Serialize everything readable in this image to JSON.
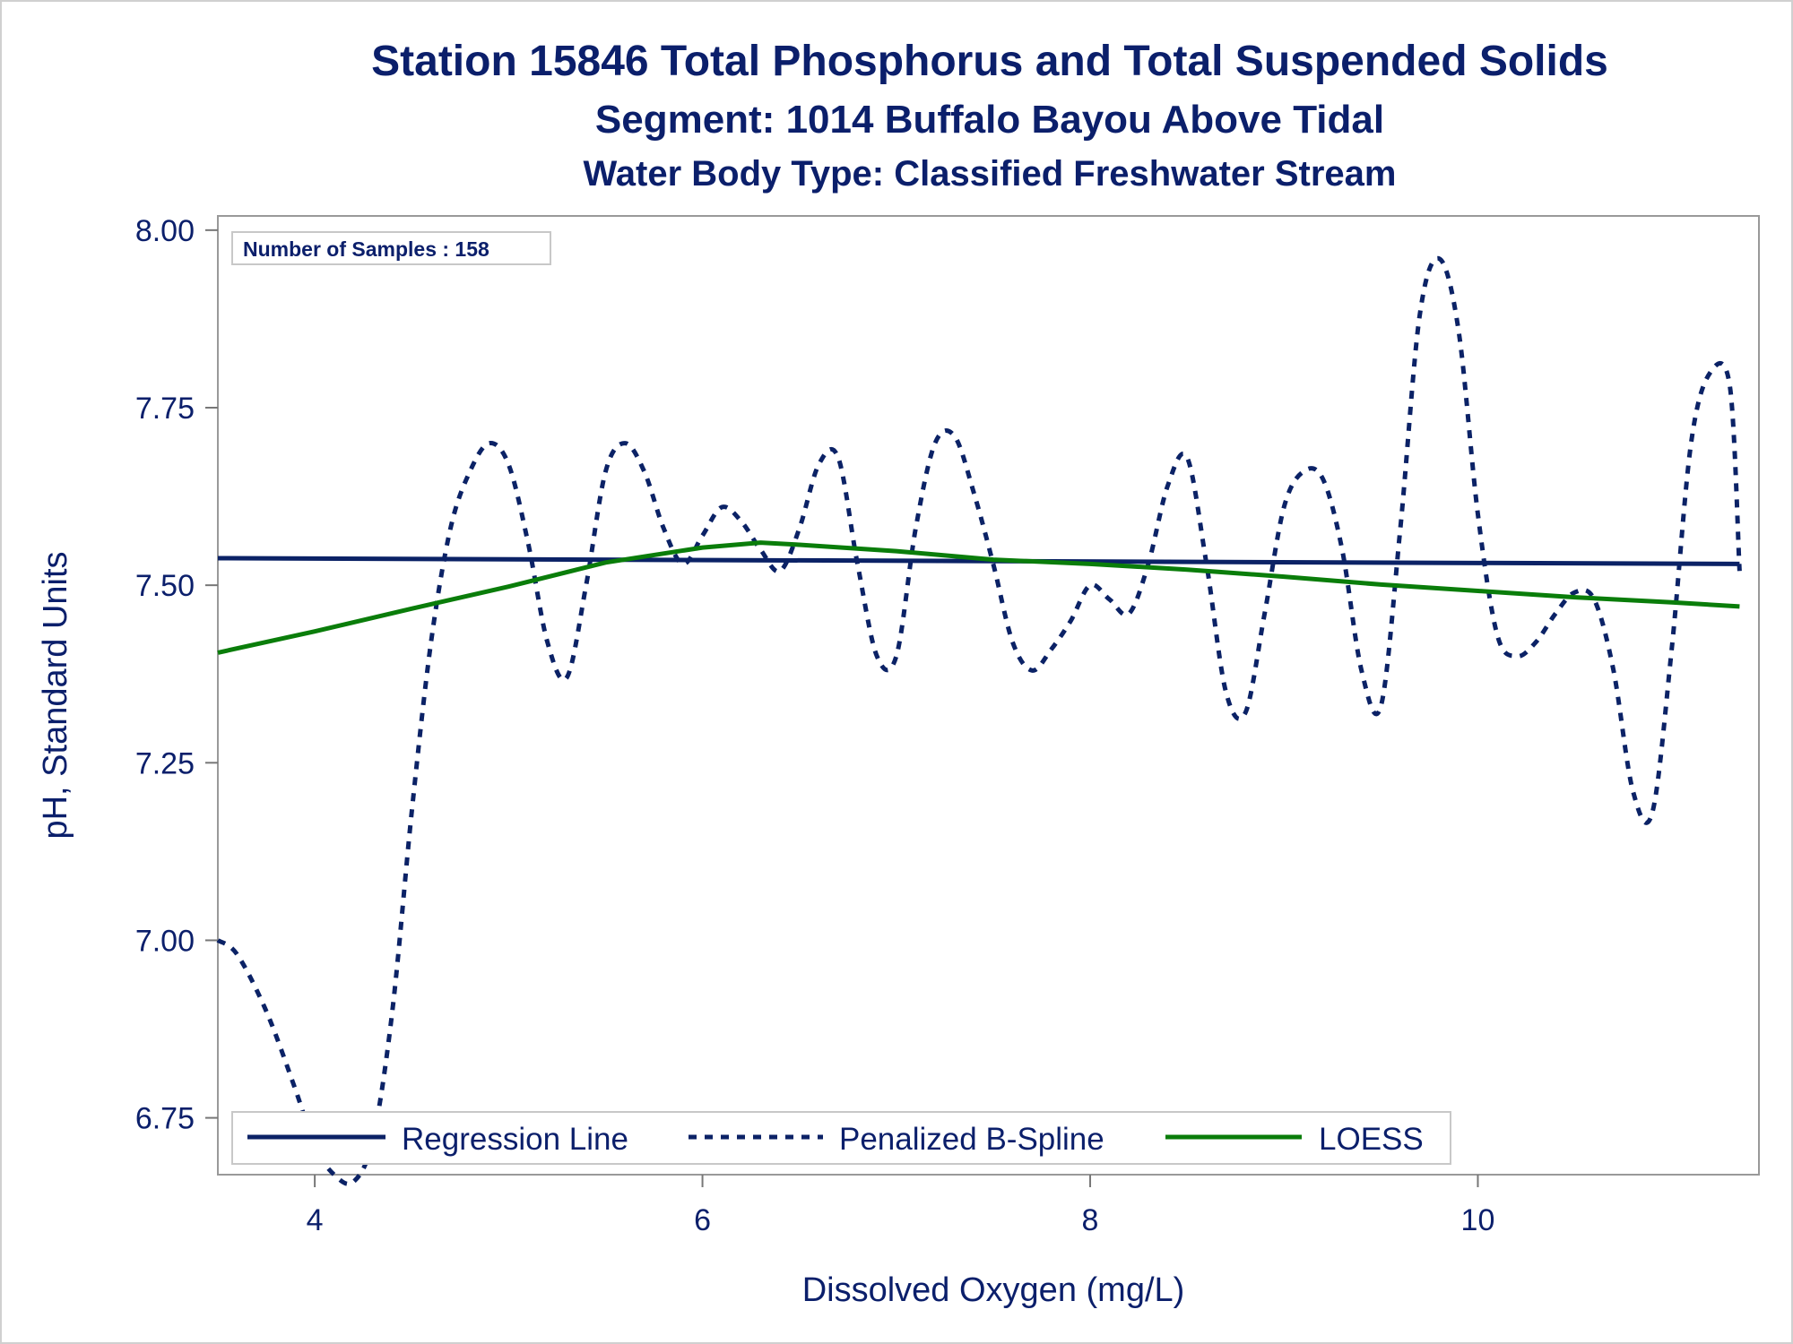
{
  "chart_data": {
    "type": "line",
    "title": "Station 15846  Total Phosphorus and Total Suspended Solids",
    "subtitle": "Segment: 1014  Buffalo Bayou Above Tidal",
    "subtitle2": "Water Body Type: Classified Freshwater Stream",
    "xlabel": "Dissolved Oxygen (mg/L)",
    "ylabel": "pH, Standard Units",
    "xlim": [
      3.5,
      11.45
    ],
    "ylim": [
      6.67,
      8.02
    ],
    "x_ticks": [
      4,
      6,
      8,
      10
    ],
    "y_ticks": [
      6.75,
      7.0,
      7.25,
      7.5,
      7.75,
      8.0
    ],
    "x_tick_labels": [
      "4",
      "6",
      "8",
      "10"
    ],
    "y_tick_labels": [
      "6.75",
      "7.00",
      "7.25",
      "7.50",
      "7.75",
      "8.00"
    ],
    "grid": false,
    "legend_position": "bottom-left inside",
    "annotation": "Number of Samples : 158",
    "series": [
      {
        "name": "Regression Line",
        "style": "solid",
        "color": "#0b2266",
        "x": [
          3.5,
          11.35
        ],
        "y": [
          7.538,
          7.53
        ]
      },
      {
        "name": "Penalized B-Spline",
        "style": "dashed",
        "color": "#0b2266",
        "x": [
          3.5,
          3.6,
          3.75,
          3.9,
          4.0,
          4.1,
          4.2,
          4.3,
          4.4,
          4.5,
          4.6,
          4.7,
          4.8,
          4.9,
          5.0,
          5.1,
          5.2,
          5.3,
          5.4,
          5.5,
          5.6,
          5.7,
          5.8,
          5.9,
          6.0,
          6.1,
          6.2,
          6.3,
          6.4,
          6.5,
          6.6,
          6.7,
          6.8,
          6.9,
          7.0,
          7.1,
          7.2,
          7.3,
          7.4,
          7.5,
          7.6,
          7.7,
          7.8,
          7.9,
          8.0,
          8.1,
          8.2,
          8.3,
          8.4,
          8.5,
          8.6,
          8.7,
          8.8,
          8.9,
          9.0,
          9.1,
          9.2,
          9.3,
          9.4,
          9.5,
          9.6,
          9.7,
          9.8,
          9.9,
          10.0,
          10.1,
          10.2,
          10.3,
          10.4,
          10.5,
          10.6,
          10.7,
          10.8,
          10.9,
          11.0,
          11.1,
          11.2,
          11.3,
          11.35
        ],
        "y": [
          7.0,
          6.98,
          6.9,
          6.79,
          6.71,
          6.67,
          6.66,
          6.72,
          6.9,
          7.18,
          7.42,
          7.58,
          7.66,
          7.7,
          7.67,
          7.56,
          7.42,
          7.37,
          7.5,
          7.66,
          7.7,
          7.66,
          7.58,
          7.53,
          7.57,
          7.61,
          7.59,
          7.55,
          7.52,
          7.58,
          7.67,
          7.68,
          7.53,
          7.4,
          7.4,
          7.58,
          7.7,
          7.71,
          7.63,
          7.53,
          7.42,
          7.38,
          7.41,
          7.45,
          7.5,
          7.48,
          7.46,
          7.53,
          7.64,
          7.68,
          7.53,
          7.35,
          7.32,
          7.46,
          7.61,
          7.66,
          7.65,
          7.55,
          7.38,
          7.33,
          7.58,
          7.88,
          7.96,
          7.86,
          7.6,
          7.43,
          7.4,
          7.42,
          7.46,
          7.49,
          7.48,
          7.38,
          7.21,
          7.18,
          7.41,
          7.7,
          7.8,
          7.78,
          7.52
        ]
      },
      {
        "name": "LOESS",
        "style": "solid",
        "color": "#0a7d0a",
        "x": [
          3.5,
          4.0,
          4.5,
          5.0,
          5.5,
          6.0,
          6.3,
          6.5,
          7.0,
          7.5,
          8.0,
          8.5,
          9.0,
          9.5,
          10.0,
          10.5,
          11.0,
          11.35
        ],
        "y": [
          7.405,
          7.435,
          7.467,
          7.498,
          7.532,
          7.553,
          7.56,
          7.557,
          7.548,
          7.536,
          7.53,
          7.522,
          7.512,
          7.501,
          7.492,
          7.483,
          7.476,
          7.47
        ]
      }
    ]
  }
}
